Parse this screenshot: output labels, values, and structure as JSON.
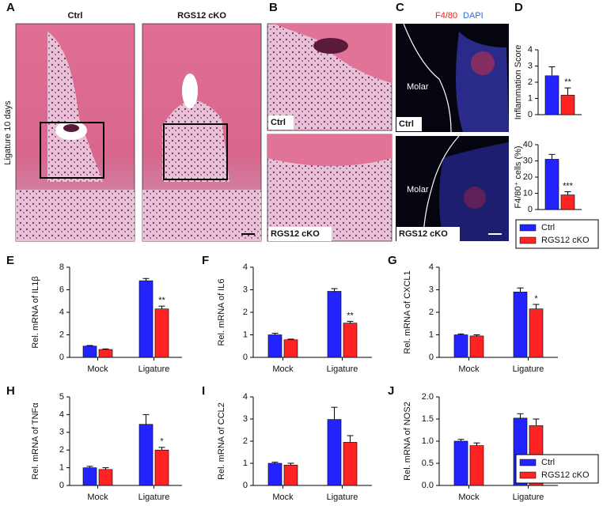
{
  "figure": {
    "panel_letters": [
      "A",
      "B",
      "C",
      "D",
      "E",
      "F",
      "G",
      "H",
      "I",
      "J"
    ],
    "a_headers": [
      "Ctrl",
      "RGS12 cKO"
    ],
    "a_side_label": "Ligature 10 days",
    "b_labels": [
      "Ctrl",
      "RGS12 cKO"
    ],
    "c_stain": [
      "F4/80",
      "DAPI"
    ],
    "c_labels": [
      "Ctrl",
      "RGS12 cKO"
    ],
    "c_molar": [
      "Molar",
      "Molar"
    ]
  },
  "chart_data": [
    {
      "type": "bar",
      "ylabel": "Inflammation Score",
      "categories": [
        null
      ],
      "ylim": [
        0,
        4
      ],
      "yticks": [
        0,
        1,
        2,
        3,
        4
      ],
      "series": [
        {
          "name": "Ctrl",
          "color": "#2323ff",
          "values": [
            2.4
          ],
          "errors": [
            0.55
          ]
        },
        {
          "name": "RGS12 cKO",
          "color": "#ff2323",
          "values": [
            1.2
          ],
          "errors": [
            0.45
          ],
          "significance": [
            "**"
          ]
        }
      ]
    },
    {
      "type": "bar",
      "ylabel": "F4/80⁺ cells (%)",
      "categories": [
        null
      ],
      "ylim": [
        0,
        40
      ],
      "yticks": [
        0,
        10,
        20,
        30,
        40
      ],
      "series": [
        {
          "name": "Ctrl",
          "color": "#2323ff",
          "values": [
            31
          ],
          "errors": [
            3
          ]
        },
        {
          "name": "RGS12 cKO",
          "color": "#ff2323",
          "values": [
            9
          ],
          "errors": [
            2
          ],
          "significance": [
            "***"
          ]
        }
      ]
    },
    {
      "type": "bar",
      "ylabel": "Rel. mRNA of IL1β",
      "categories": [
        "Mock",
        "Ligature"
      ],
      "ylim": [
        0,
        8
      ],
      "yticks": [
        0,
        2,
        4,
        6,
        8
      ],
      "series": [
        {
          "name": "Ctrl",
          "color": "#2323ff",
          "values": [
            1.0,
            6.8
          ],
          "errors": [
            0.05,
            0.2
          ]
        },
        {
          "name": "RGS12 cKO",
          "color": "#ff2323",
          "values": [
            0.7,
            4.3
          ],
          "errors": [
            0.05,
            0.25
          ],
          "significance": [
            null,
            "**"
          ]
        }
      ]
    },
    {
      "type": "bar",
      "ylabel": "Rel. mRNA of IL6",
      "categories": [
        "Mock",
        "Ligature"
      ],
      "ylim": [
        0,
        4
      ],
      "yticks": [
        0,
        1,
        2,
        3,
        4
      ],
      "series": [
        {
          "name": "Ctrl",
          "color": "#2323ff",
          "values": [
            1.0,
            2.93
          ],
          "errors": [
            0.07,
            0.12
          ]
        },
        {
          "name": "RGS12 cKO",
          "color": "#ff2323",
          "values": [
            0.78,
            1.52
          ],
          "errors": [
            0.03,
            0.08
          ],
          "significance": [
            null,
            "**"
          ]
        }
      ]
    },
    {
      "type": "bar",
      "ylabel": "Rel. mRNA of CXCL1",
      "categories": [
        "Mock",
        "Ligature"
      ],
      "ylim": [
        0,
        4
      ],
      "yticks": [
        0,
        1,
        2,
        3,
        4
      ],
      "series": [
        {
          "name": "Ctrl",
          "color": "#2323ff",
          "values": [
            1.0,
            2.9
          ],
          "errors": [
            0.04,
            0.18
          ]
        },
        {
          "name": "RGS12 cKO",
          "color": "#ff2323",
          "values": [
            0.95,
            2.15
          ],
          "errors": [
            0.05,
            0.2
          ],
          "significance": [
            null,
            "*"
          ]
        }
      ]
    },
    {
      "type": "bar",
      "ylabel": "Rel. mRNA of TNFα",
      "categories": [
        "Mock",
        "Ligature"
      ],
      "ylim": [
        0,
        5
      ],
      "yticks": [
        0,
        1,
        2,
        3,
        4,
        5
      ],
      "series": [
        {
          "name": "Ctrl",
          "color": "#2323ff",
          "values": [
            1.0,
            3.45
          ],
          "errors": [
            0.08,
            0.55
          ]
        },
        {
          "name": "RGS12 cKO",
          "color": "#ff2323",
          "values": [
            0.9,
            2.0
          ],
          "errors": [
            0.1,
            0.15
          ],
          "significance": [
            null,
            "*"
          ]
        }
      ]
    },
    {
      "type": "bar",
      "ylabel": "Rel. mRNA of CCL2",
      "categories": [
        "Mock",
        "Ligature"
      ],
      "ylim": [
        0,
        4
      ],
      "yticks": [
        0,
        1,
        2,
        3,
        4
      ],
      "series": [
        {
          "name": "Ctrl",
          "color": "#2323ff",
          "values": [
            1.0,
            2.98
          ],
          "errors": [
            0.05,
            0.55
          ]
        },
        {
          "name": "RGS12 cKO",
          "color": "#ff2323",
          "values": [
            0.92,
            1.95
          ],
          "errors": [
            0.08,
            0.3
          ]
        }
      ]
    },
    {
      "type": "bar",
      "ylabel": "Rel. mRNA of NOS2",
      "categories": [
        "Mock",
        "Ligature"
      ],
      "ylim": [
        0,
        2
      ],
      "yticks": [
        {
          "value": 0,
          "label": "0.0"
        },
        {
          "value": 0.5,
          "label": "0.5"
        },
        {
          "value": 1,
          "label": "1.0"
        },
        {
          "value": 1.5,
          "label": "1.5"
        },
        {
          "value": 2,
          "label": "2.0"
        }
      ],
      "series": [
        {
          "name": "Ctrl",
          "color": "#2323ff",
          "values": [
            1.0,
            1.52
          ],
          "errors": [
            0.04,
            0.1
          ]
        },
        {
          "name": "RGS12 cKO",
          "color": "#ff2323",
          "values": [
            0.9,
            1.35
          ],
          "errors": [
            0.06,
            0.15
          ]
        }
      ]
    }
  ]
}
